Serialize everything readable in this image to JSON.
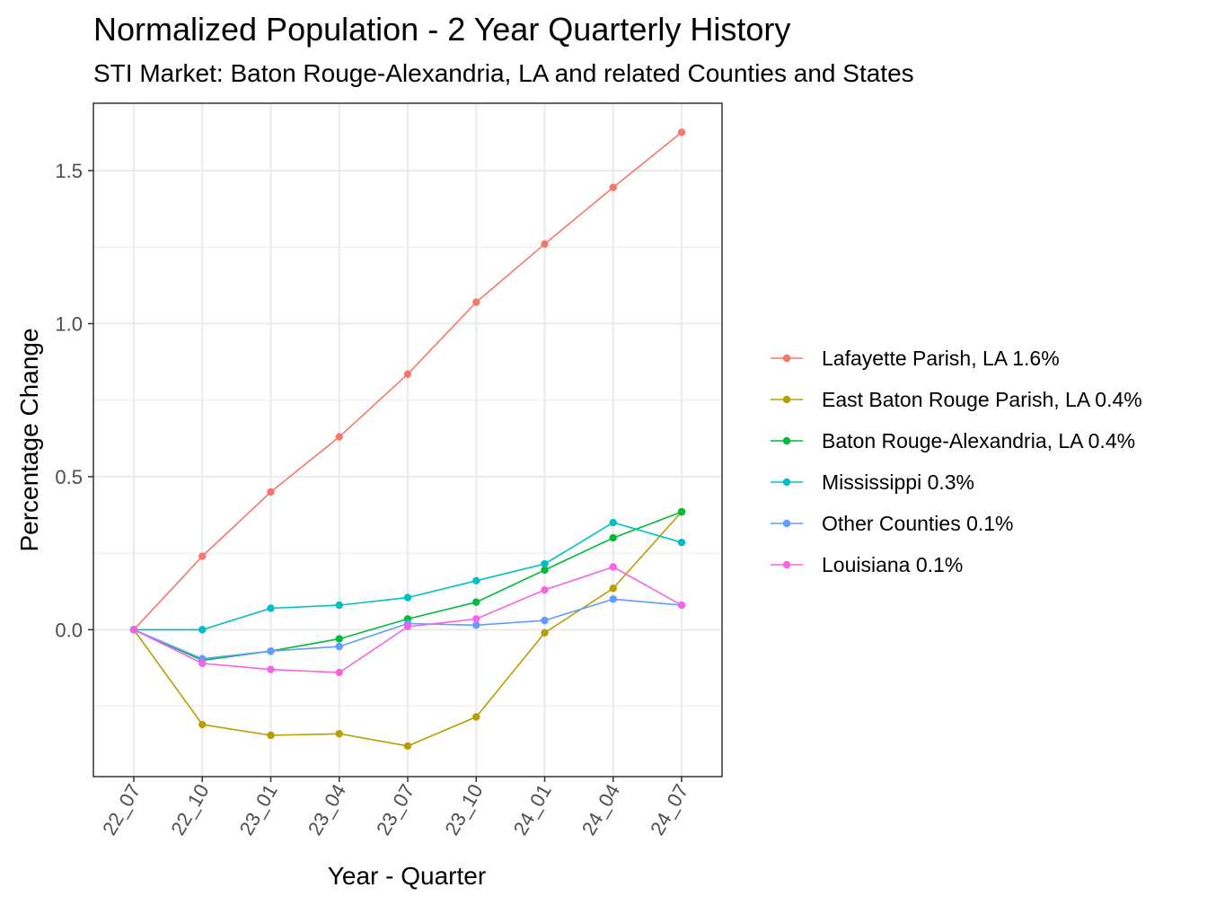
{
  "chart_data": {
    "type": "line",
    "title": "Normalized Population - 2 Year Quarterly History",
    "subtitle": "STI Market: Baton Rouge-Alexandria, LA and related Counties and States",
    "xlabel": "Year - Quarter",
    "ylabel": "Percentage Change",
    "categories": [
      "22_07",
      "22_10",
      "23_01",
      "23_04",
      "23_07",
      "23_10",
      "24_01",
      "24_04",
      "24_07"
    ],
    "ylim": [
      -0.48,
      1.72
    ],
    "y_ticks": [
      "0.0",
      "0.5",
      "1.0",
      "1.5"
    ],
    "y_tick_values": [
      0.0,
      0.5,
      1.0,
      1.5
    ],
    "grid": true,
    "legend_position": "right",
    "series": [
      {
        "name": "Lafayette Parish, LA 1.6%",
        "color": "#F8766D",
        "values": [
          0.0,
          0.24,
          0.45,
          0.63,
          0.835,
          1.07,
          1.26,
          1.445,
          1.625
        ]
      },
      {
        "name": "East Baton Rouge Parish, LA 0.4%",
        "color": "#B79F00",
        "values": [
          0.0,
          -0.31,
          -0.345,
          -0.34,
          -0.38,
          -0.285,
          -0.01,
          0.135,
          0.385
        ]
      },
      {
        "name": "Baton Rouge-Alexandria, LA 0.4%",
        "color": "#00BA38",
        "values": [
          0.0,
          -0.1,
          -0.07,
          -0.03,
          0.035,
          0.09,
          0.195,
          0.3,
          0.385
        ]
      },
      {
        "name": "Mississippi 0.3%",
        "color": "#00BFC4",
        "values": [
          0.0,
          0.0,
          0.07,
          0.08,
          0.105,
          0.16,
          0.215,
          0.35,
          0.285
        ]
      },
      {
        "name": "Other Counties 0.1%",
        "color": "#619CFF",
        "values": [
          0.0,
          -0.095,
          -0.07,
          -0.055,
          0.02,
          0.015,
          0.03,
          0.1,
          0.08
        ]
      },
      {
        "name": "Louisiana 0.1%",
        "color": "#F564E3",
        "values": [
          0.0,
          -0.11,
          -0.13,
          -0.14,
          0.01,
          0.035,
          0.13,
          0.205,
          0.08
        ]
      }
    ]
  }
}
